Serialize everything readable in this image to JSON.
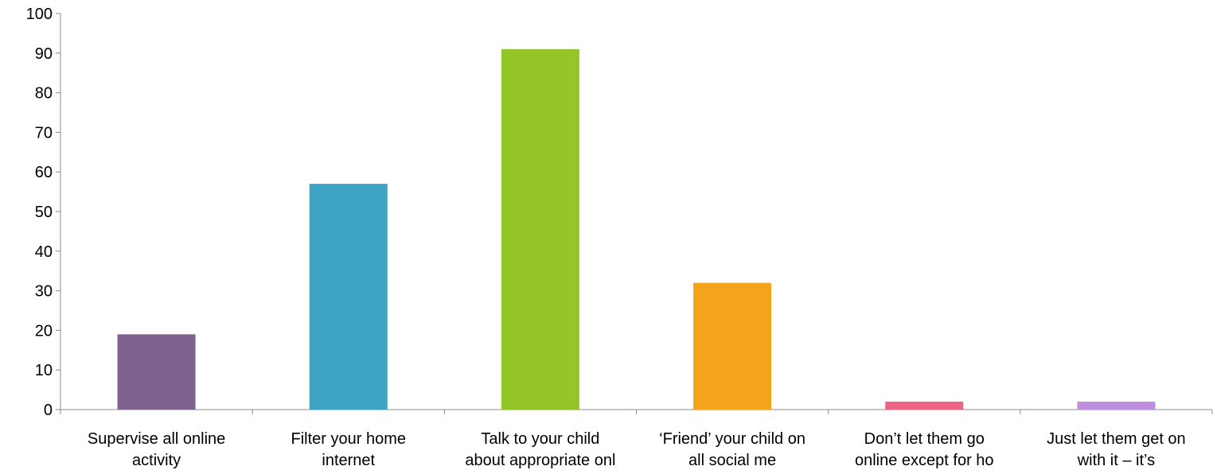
{
  "chart_data": {
    "type": "bar",
    "title": "",
    "xlabel": "",
    "ylabel": "",
    "ylim": [
      0,
      100
    ],
    "yticks": [
      0,
      10,
      20,
      30,
      40,
      50,
      60,
      70,
      80,
      90,
      100
    ],
    "grid": false,
    "legend": "none",
    "categories": [
      [
        "Supervise all online",
        "activity"
      ],
      [
        "Filter your home",
        "internet"
      ],
      [
        "Talk to your child",
        "about appropriate onl"
      ],
      [
        "‘Friend’ your child on",
        "all social me"
      ],
      [
        "Don’t let them go",
        "online except for ho"
      ],
      [
        "Just let them get on",
        "with it – it’s"
      ]
    ],
    "values": [
      19,
      57,
      91,
      32,
      2,
      2
    ],
    "colors": [
      "#7f6190",
      "#3ea3c3",
      "#94c62a",
      "#f3a41c",
      "#ee6584",
      "#be8fdc"
    ]
  }
}
